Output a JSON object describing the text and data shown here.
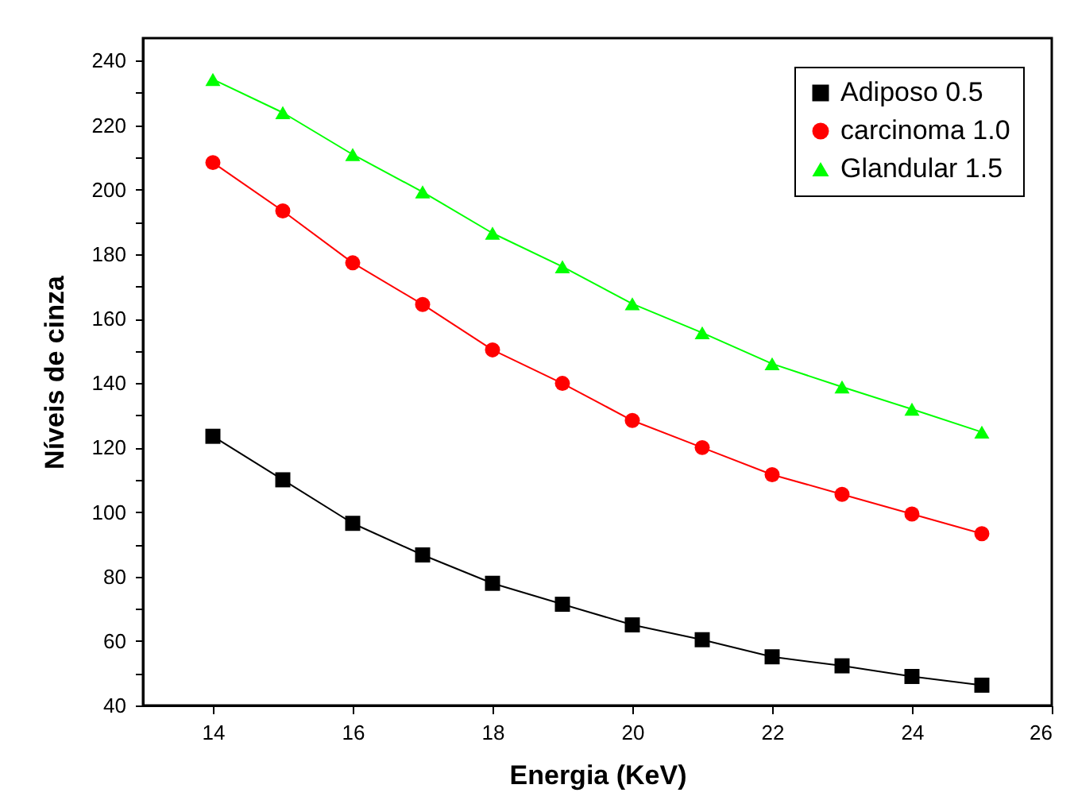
{
  "chart_data": {
    "type": "line",
    "xlabel": "Energia (KeV)",
    "ylabel": "Níveis de cinza",
    "x": [
      14,
      15,
      16,
      17,
      18,
      19,
      20,
      21,
      22,
      23,
      24,
      25
    ],
    "xlim": [
      13,
      26
    ],
    "xticks": [
      14,
      16,
      18,
      20,
      22,
      24,
      26
    ],
    "ylim": [
      40,
      247
    ],
    "yticks": [
      40,
      {
        "value": 50,
        "label": null
      },
      60,
      {
        "value": 70,
        "label": null
      },
      80,
      {
        "value": 90,
        "label": null
      },
      100,
      {
        "value": 110,
        "label": null
      },
      120,
      {
        "value": 130,
        "label": null
      },
      140,
      {
        "value": 150,
        "label": null
      },
      160,
      {
        "value": 170,
        "label": null
      },
      180,
      {
        "value": 190,
        "label": null
      },
      200,
      {
        "value": 210,
        "label": null
      },
      220,
      {
        "value": 230,
        "label": null
      },
      240
    ],
    "grid": false,
    "legend": "top right",
    "line_style": "solid",
    "series": [
      {
        "name": "Adiposo 0.5",
        "color": "#000000",
        "marker": "square",
        "values": [
          123.5,
          110.0,
          96.5,
          86.7,
          77.9,
          71.4,
          65.0,
          60.4,
          55.1,
          52.3,
          49.0,
          46.3
        ]
      },
      {
        "name": "carcinoma 1.0",
        "color": "#ff0000",
        "marker": "circle",
        "values": [
          208.4,
          193.4,
          177.3,
          164.4,
          150.3,
          139.9,
          128.4,
          120.0,
          111.6,
          105.5,
          99.4,
          93.3
        ]
      },
      {
        "name": "Glandular 1.5",
        "color": "#00ff00",
        "marker": "triangle",
        "values": [
          234.2,
          223.9,
          210.9,
          199.3,
          186.5,
          176.1,
          164.6,
          155.6,
          146.0,
          138.8,
          131.9,
          124.8
        ]
      }
    ]
  }
}
